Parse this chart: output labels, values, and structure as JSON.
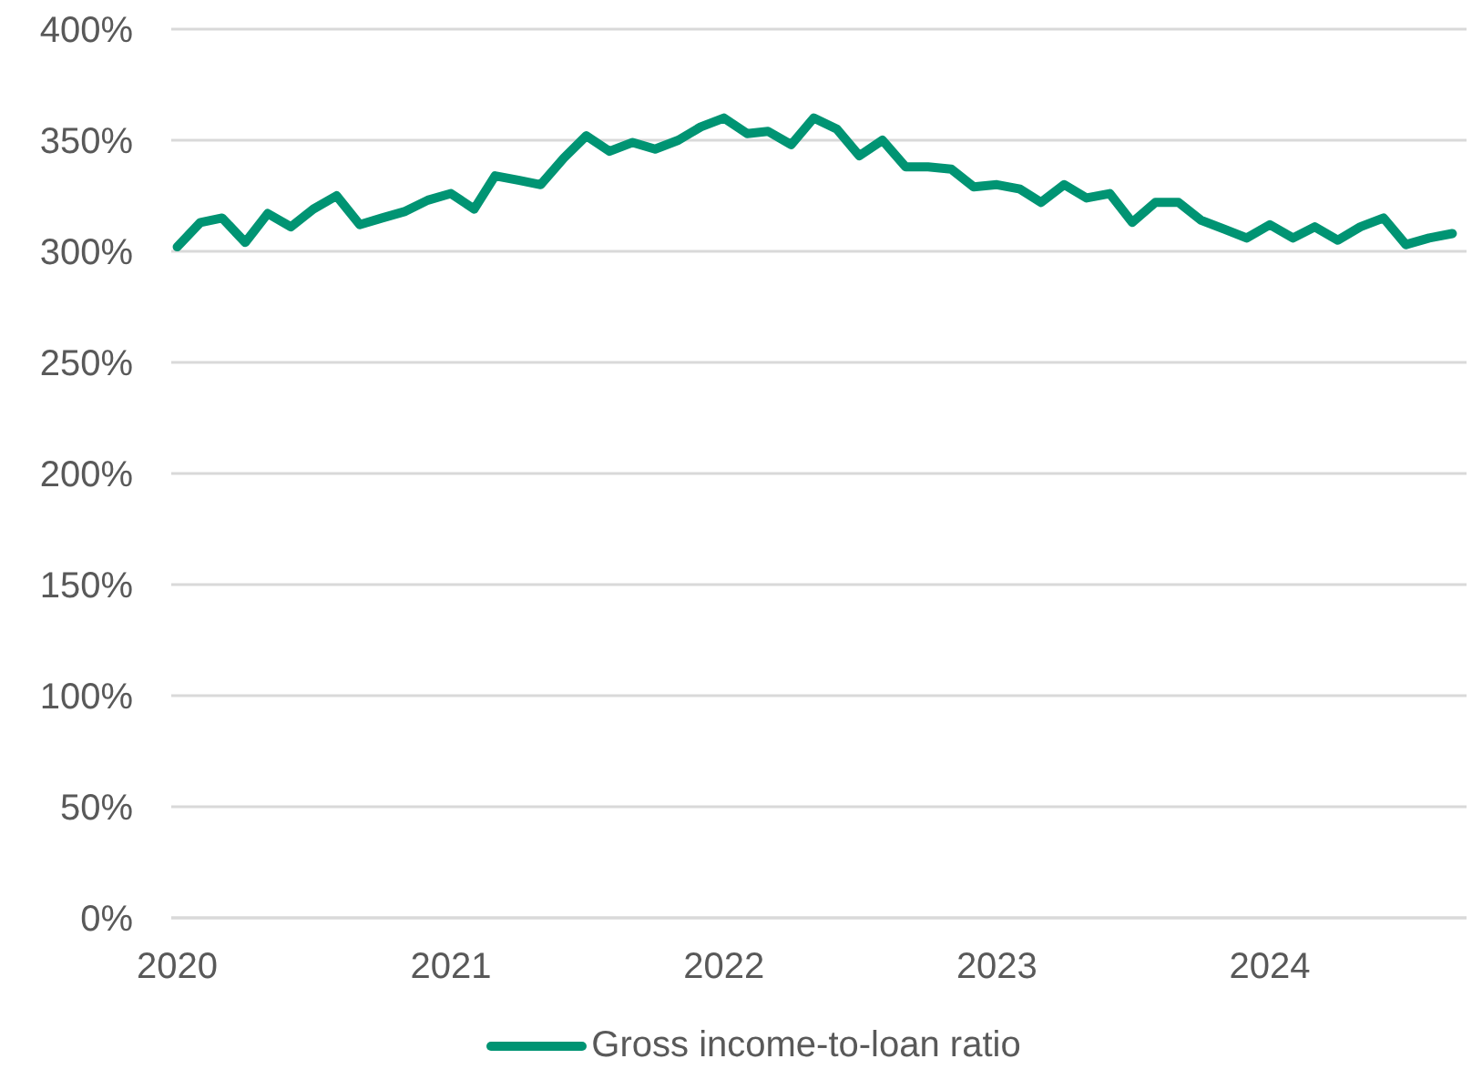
{
  "chart_data": {
    "type": "line",
    "x": [
      "2020-01",
      "2020-02",
      "2020-03",
      "2020-04",
      "2020-05",
      "2020-06",
      "2020-07",
      "2020-08",
      "2020-09",
      "2020-10",
      "2020-11",
      "2020-12",
      "2021-01",
      "2021-02",
      "2021-03",
      "2021-04",
      "2021-05",
      "2021-06",
      "2021-07",
      "2021-08",
      "2021-09",
      "2021-10",
      "2021-11",
      "2021-12",
      "2022-01",
      "2022-02",
      "2022-03",
      "2022-04",
      "2022-05",
      "2022-06",
      "2022-07",
      "2022-08",
      "2022-09",
      "2022-10",
      "2022-11",
      "2022-12",
      "2023-01",
      "2023-02",
      "2023-03",
      "2023-04",
      "2023-05",
      "2023-06",
      "2023-07",
      "2023-08",
      "2023-09",
      "2023-10",
      "2023-11",
      "2023-12",
      "2024-01",
      "2024-02",
      "2024-03",
      "2024-04",
      "2024-05",
      "2024-06",
      "2024-07",
      "2024-08",
      "2024-09"
    ],
    "series": [
      {
        "name": "Gross income-to-loan ratio",
        "color": "#009473",
        "values": [
          302,
          313,
          315,
          304,
          317,
          311,
          319,
          325,
          312,
          315,
          318,
          323,
          326,
          319,
          334,
          332,
          330,
          342,
          352,
          345,
          349,
          346,
          350,
          356,
          360,
          353,
          354,
          348,
          360,
          355,
          343,
          350,
          338,
          338,
          337,
          329,
          330,
          328,
          322,
          330,
          324,
          326,
          313,
          322,
          322,
          314,
          310,
          306,
          312,
          306,
          311,
          305,
          311,
          315,
          303,
          306,
          308
        ]
      }
    ],
    "xlim": [
      "2019-12-24",
      "2024-09-20"
    ],
    "xticks": [
      "2020",
      "2021",
      "2022",
      "2023",
      "2024"
    ],
    "ylim": [
      0,
      400
    ],
    "yticks": [
      {
        "value": 0,
        "label": "0%"
      },
      {
        "value": 50,
        "label": "50%"
      },
      {
        "value": 100,
        "label": "100%"
      },
      {
        "value": 150,
        "label": "150%"
      },
      {
        "value": 200,
        "label": "200%"
      },
      {
        "value": 250,
        "label": "250%"
      },
      {
        "value": 300,
        "label": "300%"
      },
      {
        "value": 350,
        "label": "350%"
      },
      {
        "value": 400,
        "label": "400%"
      }
    ],
    "grid": "y",
    "legend": "bottom"
  }
}
